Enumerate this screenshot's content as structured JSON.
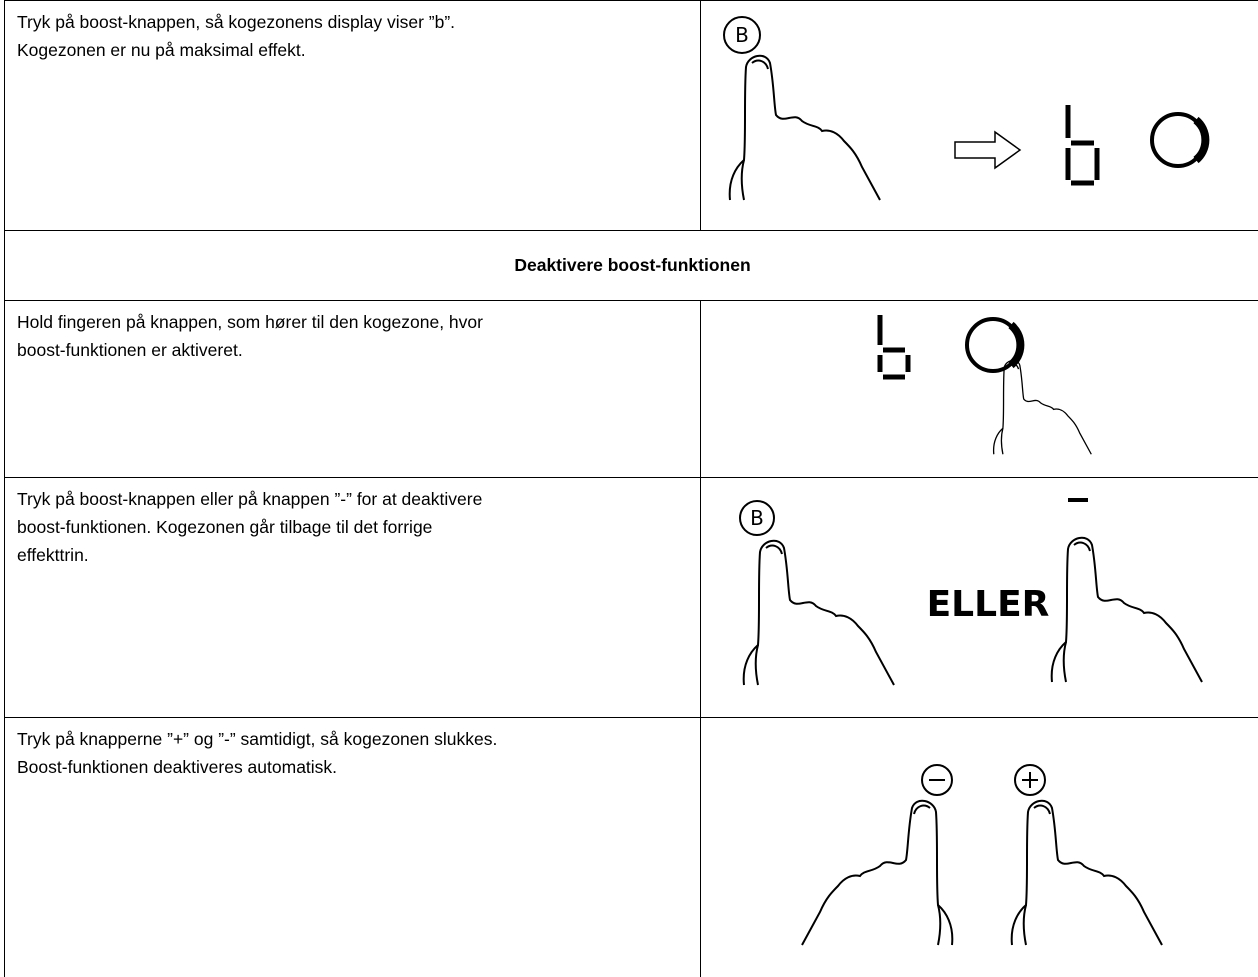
{
  "table": {
    "rows": [
      {
        "lines": [
          "Tryk på boost-knappen, så kogezonens display viser ”b”.",
          "Kogezonen er nu på maksimal effekt."
        ],
        "button": "B"
      },
      {
        "header": "Deaktivere boost-funktionen"
      },
      {
        "lines": [
          "Hold fingeren på knappen, som hører til den kogezone, hvor",
          "boost-funktionen er aktiveret."
        ]
      },
      {
        "lines": [
          "Tryk på boost-knappen eller på knappen ”-” for at deaktivere",
          "boost-funktionen. Kogezonen går tilbage til det forrige",
          "effekttrin."
        ],
        "button": "B",
        "or": "ELLER"
      },
      {
        "lines": [
          "Tryk på knapperne ”+” og ”-” samtidigt, så kogezonen slukkes.",
          "Boost-funktionen deaktiveres automatisk."
        ]
      }
    ]
  }
}
